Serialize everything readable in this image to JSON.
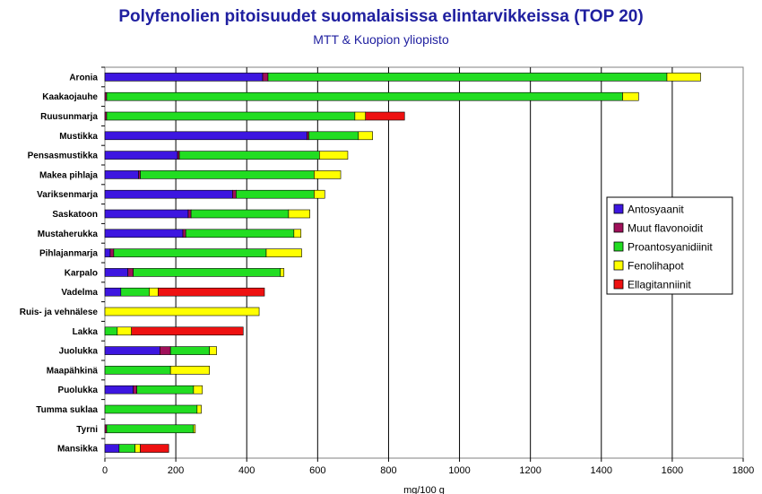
{
  "title": "Polyfenolien pitoisuudet suomalaisissa elintarvikkeissa (TOP 20)",
  "subtitle": "MTT & Kuopion yliopisto",
  "chart_data": {
    "type": "bar",
    "orientation": "horizontal",
    "stacked": true,
    "xlabel": "mg/100 g",
    "xlim": [
      0,
      1800
    ],
    "xticks": [
      0,
      200,
      400,
      600,
      800,
      1000,
      1200,
      1400,
      1600,
      1800
    ],
    "grid": true,
    "legend_position": "right",
    "categories": [
      "Aronia",
      "Kaakaojauhe",
      "Ruusunmarja",
      "Mustikka",
      "Pensasmustikka",
      "Makea pihlaja",
      "Variksenmarja",
      "Saskatoon",
      "Mustaherukka",
      "Pihlajanmarja",
      "Karpalo",
      "Vadelma",
      "Ruis- ja vehnälese",
      "Lakka",
      "Juolukka",
      "Maapähkinä",
      "Puolukka",
      "Tumma suklaa",
      "Tyrni",
      "Mansikka"
    ],
    "series": [
      {
        "name": "Antosyaanit",
        "color": "#3d16e0",
        "values": [
          445,
          0,
          0,
          570,
          205,
          95,
          360,
          235,
          220,
          15,
          65,
          45,
          0,
          0,
          155,
          0,
          80,
          0,
          0,
          40
        ]
      },
      {
        "name": "Muut flavonoidit",
        "color": "#a0105a",
        "values": [
          15,
          5,
          5,
          5,
          5,
          5,
          10,
          8,
          8,
          10,
          15,
          0,
          0,
          0,
          30,
          0,
          10,
          0,
          5,
          0
        ]
      },
      {
        "name": "Proantosyanidiinit",
        "color": "#22dd22",
        "values": [
          1125,
          1455,
          700,
          140,
          395,
          490,
          220,
          275,
          305,
          430,
          415,
          80,
          0,
          35,
          110,
          185,
          160,
          260,
          245,
          45
        ]
      },
      {
        "name": "Fenolihapot",
        "color": "#ffff00",
        "values": [
          95,
          45,
          30,
          40,
          80,
          75,
          30,
          60,
          20,
          100,
          10,
          25,
          435,
          40,
          20,
          110,
          25,
          12,
          5,
          15
        ]
      },
      {
        "name": "Ellagitanniinit",
        "color": "#ee1111",
        "values": [
          0,
          0,
          110,
          0,
          0,
          0,
          0,
          0,
          0,
          0,
          0,
          300,
          0,
          315,
          0,
          0,
          0,
          0,
          0,
          80
        ]
      }
    ]
  }
}
